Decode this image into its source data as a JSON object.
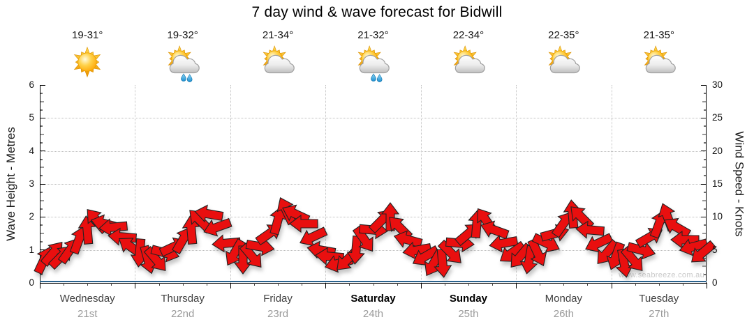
{
  "title": "7 day wind & wave forecast for Bidwill",
  "watermark": "www.seabreeze.com.au",
  "days": [
    {
      "name": "Wednesday",
      "date": "21st",
      "temp_range": "19-31°",
      "icon": "sunny",
      "weekend": false
    },
    {
      "name": "Thursday",
      "date": "22nd",
      "temp_range": "19-32°",
      "icon": "partly-cloudy-rain",
      "weekend": false
    },
    {
      "name": "Friday",
      "date": "23rd",
      "temp_range": "21-34°",
      "icon": "partly-cloudy",
      "weekend": false
    },
    {
      "name": "Saturday",
      "date": "24th",
      "temp_range": "21-32°",
      "icon": "partly-cloudy-rain",
      "weekend": true
    },
    {
      "name": "Sunday",
      "date": "25th",
      "temp_range": "22-34°",
      "icon": "partly-cloudy",
      "weekend": true
    },
    {
      "name": "Monday",
      "date": "26th",
      "temp_range": "22-35°",
      "icon": "partly-cloudy",
      "weekend": false
    },
    {
      "name": "Tuesday",
      "date": "27th",
      "temp_range": "21-35°",
      "icon": "partly-cloudy",
      "weekend": false
    }
  ],
  "chart_data": {
    "type": "scatter",
    "subtype": "wind-arrow-timeseries",
    "title": "7 day wind & wave forecast for Bidwill",
    "x_axis": {
      "categories": [
        "Wednesday",
        "Thursday",
        "Friday",
        "Saturday",
        "Sunday",
        "Monday",
        "Tuesday"
      ],
      "days": 7,
      "minor_ticks_per_day": 4
    },
    "y_left": {
      "label": "Wave Height - Metres",
      "min": 0,
      "max": 6,
      "tick_step": 1,
      "minor_step": 0.25
    },
    "y_right": {
      "label": "Wind Speed - Knots",
      "min": 0,
      "max": 30,
      "tick_step": 5
    },
    "grid": {
      "horizontal_at_metres": [
        1,
        2,
        3,
        4,
        5
      ],
      "vertical_at": "day-boundaries",
      "style": "dotted"
    },
    "direction_convention": "degrees; 0 = arrow points right (east), positive = clockwise",
    "series": [
      {
        "name": "Wind speed & direction",
        "units": "knots",
        "points_per_day": 11,
        "days": [
          {
            "day": "Wednesday",
            "speeds_knots": [
              3.5,
              4.5,
              4.0,
              5.0,
              6.5,
              8.0,
              9.5,
              9.0,
              8.5,
              7.0,
              5.5
            ],
            "directions_deg": [
              -65,
              -50,
              -45,
              -55,
              -70,
              -95,
              -130,
              -165,
              175,
              -175,
              -145
            ]
          },
          {
            "day": "Thursday",
            "speeds_knots": [
              4.5,
              3.5,
              3.5,
              4.5,
              5.5,
              6.5,
              8.0,
              9.5,
              10.5,
              8.5,
              6.0
            ],
            "directions_deg": [
              95,
              75,
              50,
              15,
              -25,
              -60,
              -95,
              -135,
              -170,
              160,
              175
            ]
          },
          {
            "day": "Friday",
            "speeds_knots": [
              4.5,
              3.5,
              4.0,
              5.5,
              7.5,
              9.5,
              11.0,
              10.5,
              9.0,
              7.0,
              5.0
            ],
            "directions_deg": [
              120,
              90,
              50,
              10,
              -35,
              -75,
              -115,
              -155,
              180,
              155,
              -170
            ]
          },
          {
            "day": "Saturday",
            "speeds_knots": [
              4.0,
              3.0,
              3.5,
              5.0,
              6.5,
              8.0,
              9.5,
              10.0,
              8.5,
              6.5,
              5.0
            ],
            "directions_deg": [
              -175,
              165,
              135,
              95,
              55,
              5,
              -45,
              -90,
              -135,
              -165,
              170
            ]
          },
          {
            "day": "Sunday",
            "speeds_knots": [
              4.0,
              3.0,
              3.0,
              4.5,
              6.0,
              7.5,
              9.0,
              9.5,
              8.0,
              6.0,
              4.5
            ],
            "directions_deg": [
              150,
              120,
              85,
              45,
              5,
              -40,
              -85,
              -125,
              -160,
              170,
              145
            ]
          },
          {
            "day": "Monday",
            "speeds_knots": [
              4.0,
              3.5,
              4.5,
              6.0,
              7.5,
              9.0,
              10.5,
              10.0,
              8.0,
              6.0,
              4.5
            ],
            "directions_deg": [
              130,
              100,
              65,
              25,
              -15,
              -55,
              -95,
              -135,
              -175,
              155,
              130
            ]
          },
          {
            "day": "Tuesday",
            "speeds_knots": [
              4.0,
              3.0,
              3.5,
              5.0,
              7.0,
              9.0,
              10.0,
              8.5,
              6.5,
              5.5,
              4.5
            ],
            "directions_deg": [
              110,
              80,
              50,
              15,
              -30,
              -70,
              -110,
              -150,
              -180,
              165,
              140
            ]
          }
        ]
      },
      {
        "name": "Wave height",
        "units": "metres",
        "values_m": [
          0.05,
          0.05,
          0.05,
          0.05,
          0.05,
          0.05,
          0.05,
          0.05
        ]
      }
    ]
  },
  "colors": {
    "arrow_fill": "#e90f0f",
    "arrow_outline": "#222222",
    "wave_line": "#2b628c",
    "grid": "#bdbdbd",
    "axis": "#000000",
    "day_date_text": "#9b9b9b",
    "watermark_text": "#c9c9c9"
  }
}
